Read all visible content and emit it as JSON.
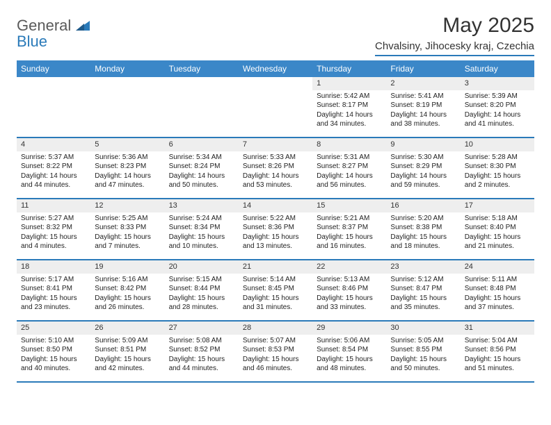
{
  "logo": {
    "word1": "General",
    "word2": "Blue"
  },
  "title": "May 2025",
  "location": "Chvalsiny, Jihocesky kraj, Czechia",
  "colors": {
    "header_bar": "#3b87c8",
    "accent": "#2a7ab9",
    "daynum_bg": "#eeeeee",
    "text": "#222222",
    "logo_gray": "#5a5a5a"
  },
  "days_of_week": [
    "Sunday",
    "Monday",
    "Tuesday",
    "Wednesday",
    "Thursday",
    "Friday",
    "Saturday"
  ],
  "weeks": [
    [
      {
        "n": "",
        "sr": "",
        "ss": "",
        "dl": ""
      },
      {
        "n": "",
        "sr": "",
        "ss": "",
        "dl": ""
      },
      {
        "n": "",
        "sr": "",
        "ss": "",
        "dl": ""
      },
      {
        "n": "",
        "sr": "",
        "ss": "",
        "dl": ""
      },
      {
        "n": "1",
        "sr": "Sunrise: 5:42 AM",
        "ss": "Sunset: 8:17 PM",
        "dl": "Daylight: 14 hours and 34 minutes."
      },
      {
        "n": "2",
        "sr": "Sunrise: 5:41 AM",
        "ss": "Sunset: 8:19 PM",
        "dl": "Daylight: 14 hours and 38 minutes."
      },
      {
        "n": "3",
        "sr": "Sunrise: 5:39 AM",
        "ss": "Sunset: 8:20 PM",
        "dl": "Daylight: 14 hours and 41 minutes."
      }
    ],
    [
      {
        "n": "4",
        "sr": "Sunrise: 5:37 AM",
        "ss": "Sunset: 8:22 PM",
        "dl": "Daylight: 14 hours and 44 minutes."
      },
      {
        "n": "5",
        "sr": "Sunrise: 5:36 AM",
        "ss": "Sunset: 8:23 PM",
        "dl": "Daylight: 14 hours and 47 minutes."
      },
      {
        "n": "6",
        "sr": "Sunrise: 5:34 AM",
        "ss": "Sunset: 8:24 PM",
        "dl": "Daylight: 14 hours and 50 minutes."
      },
      {
        "n": "7",
        "sr": "Sunrise: 5:33 AM",
        "ss": "Sunset: 8:26 PM",
        "dl": "Daylight: 14 hours and 53 minutes."
      },
      {
        "n": "8",
        "sr": "Sunrise: 5:31 AM",
        "ss": "Sunset: 8:27 PM",
        "dl": "Daylight: 14 hours and 56 minutes."
      },
      {
        "n": "9",
        "sr": "Sunrise: 5:30 AM",
        "ss": "Sunset: 8:29 PM",
        "dl": "Daylight: 14 hours and 59 minutes."
      },
      {
        "n": "10",
        "sr": "Sunrise: 5:28 AM",
        "ss": "Sunset: 8:30 PM",
        "dl": "Daylight: 15 hours and 2 minutes."
      }
    ],
    [
      {
        "n": "11",
        "sr": "Sunrise: 5:27 AM",
        "ss": "Sunset: 8:32 PM",
        "dl": "Daylight: 15 hours and 4 minutes."
      },
      {
        "n": "12",
        "sr": "Sunrise: 5:25 AM",
        "ss": "Sunset: 8:33 PM",
        "dl": "Daylight: 15 hours and 7 minutes."
      },
      {
        "n": "13",
        "sr": "Sunrise: 5:24 AM",
        "ss": "Sunset: 8:34 PM",
        "dl": "Daylight: 15 hours and 10 minutes."
      },
      {
        "n": "14",
        "sr": "Sunrise: 5:22 AM",
        "ss": "Sunset: 8:36 PM",
        "dl": "Daylight: 15 hours and 13 minutes."
      },
      {
        "n": "15",
        "sr": "Sunrise: 5:21 AM",
        "ss": "Sunset: 8:37 PM",
        "dl": "Daylight: 15 hours and 16 minutes."
      },
      {
        "n": "16",
        "sr": "Sunrise: 5:20 AM",
        "ss": "Sunset: 8:38 PM",
        "dl": "Daylight: 15 hours and 18 minutes."
      },
      {
        "n": "17",
        "sr": "Sunrise: 5:18 AM",
        "ss": "Sunset: 8:40 PM",
        "dl": "Daylight: 15 hours and 21 minutes."
      }
    ],
    [
      {
        "n": "18",
        "sr": "Sunrise: 5:17 AM",
        "ss": "Sunset: 8:41 PM",
        "dl": "Daylight: 15 hours and 23 minutes."
      },
      {
        "n": "19",
        "sr": "Sunrise: 5:16 AM",
        "ss": "Sunset: 8:42 PM",
        "dl": "Daylight: 15 hours and 26 minutes."
      },
      {
        "n": "20",
        "sr": "Sunrise: 5:15 AM",
        "ss": "Sunset: 8:44 PM",
        "dl": "Daylight: 15 hours and 28 minutes."
      },
      {
        "n": "21",
        "sr": "Sunrise: 5:14 AM",
        "ss": "Sunset: 8:45 PM",
        "dl": "Daylight: 15 hours and 31 minutes."
      },
      {
        "n": "22",
        "sr": "Sunrise: 5:13 AM",
        "ss": "Sunset: 8:46 PM",
        "dl": "Daylight: 15 hours and 33 minutes."
      },
      {
        "n": "23",
        "sr": "Sunrise: 5:12 AM",
        "ss": "Sunset: 8:47 PM",
        "dl": "Daylight: 15 hours and 35 minutes."
      },
      {
        "n": "24",
        "sr": "Sunrise: 5:11 AM",
        "ss": "Sunset: 8:48 PM",
        "dl": "Daylight: 15 hours and 37 minutes."
      }
    ],
    [
      {
        "n": "25",
        "sr": "Sunrise: 5:10 AM",
        "ss": "Sunset: 8:50 PM",
        "dl": "Daylight: 15 hours and 40 minutes."
      },
      {
        "n": "26",
        "sr": "Sunrise: 5:09 AM",
        "ss": "Sunset: 8:51 PM",
        "dl": "Daylight: 15 hours and 42 minutes."
      },
      {
        "n": "27",
        "sr": "Sunrise: 5:08 AM",
        "ss": "Sunset: 8:52 PM",
        "dl": "Daylight: 15 hours and 44 minutes."
      },
      {
        "n": "28",
        "sr": "Sunrise: 5:07 AM",
        "ss": "Sunset: 8:53 PM",
        "dl": "Daylight: 15 hours and 46 minutes."
      },
      {
        "n": "29",
        "sr": "Sunrise: 5:06 AM",
        "ss": "Sunset: 8:54 PM",
        "dl": "Daylight: 15 hours and 48 minutes."
      },
      {
        "n": "30",
        "sr": "Sunrise: 5:05 AM",
        "ss": "Sunset: 8:55 PM",
        "dl": "Daylight: 15 hours and 50 minutes."
      },
      {
        "n": "31",
        "sr": "Sunrise: 5:04 AM",
        "ss": "Sunset: 8:56 PM",
        "dl": "Daylight: 15 hours and 51 minutes."
      }
    ]
  ]
}
